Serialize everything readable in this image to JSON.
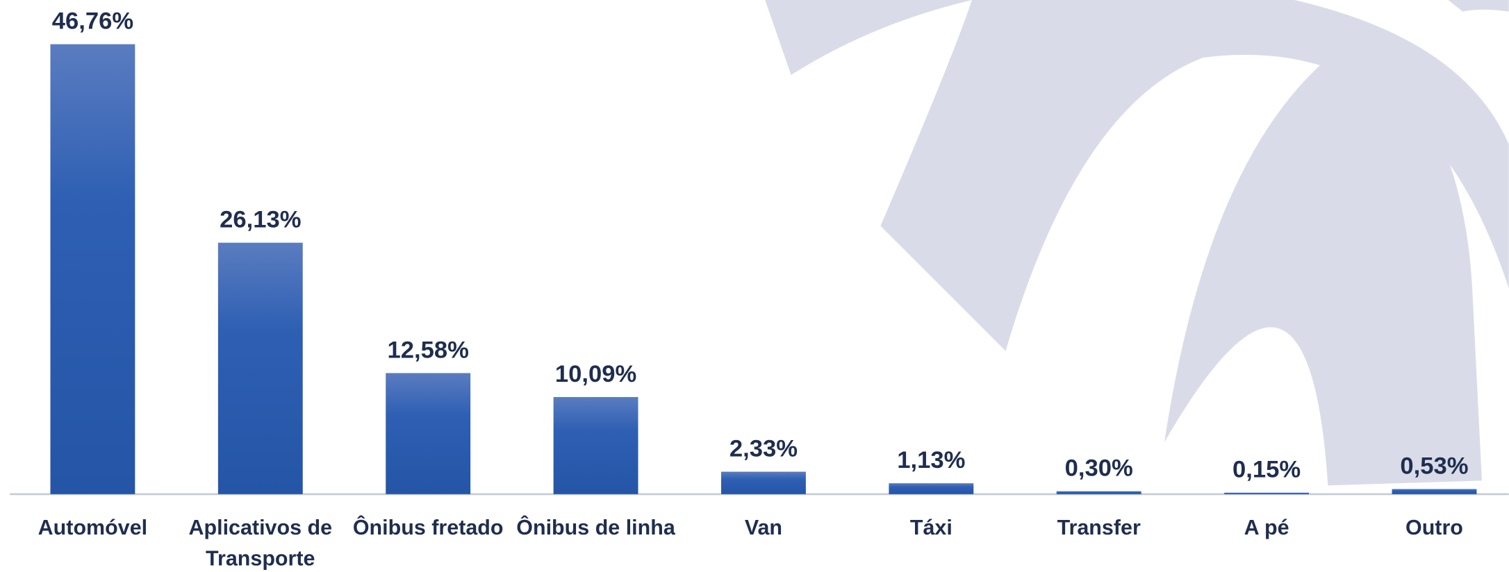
{
  "chart_data": {
    "type": "bar",
    "categories": [
      "Automóvel",
      "Aplicativos de Transporte",
      "Ônibus fretado",
      "Ônibus de linha",
      "Van",
      "Táxi",
      "Transfer",
      "A pé",
      "Outro"
    ],
    "values": [
      46.76,
      26.13,
      12.58,
      10.09,
      2.33,
      1.13,
      0.3,
      0.15,
      0.53
    ],
    "value_labels": [
      "46,76%",
      "26,13%",
      "12,58%",
      "10,09%",
      "2,33%",
      "1,13%",
      "0,30%",
      "0,15%",
      "0,53%"
    ],
    "color": "#2a5aad"
  }
}
